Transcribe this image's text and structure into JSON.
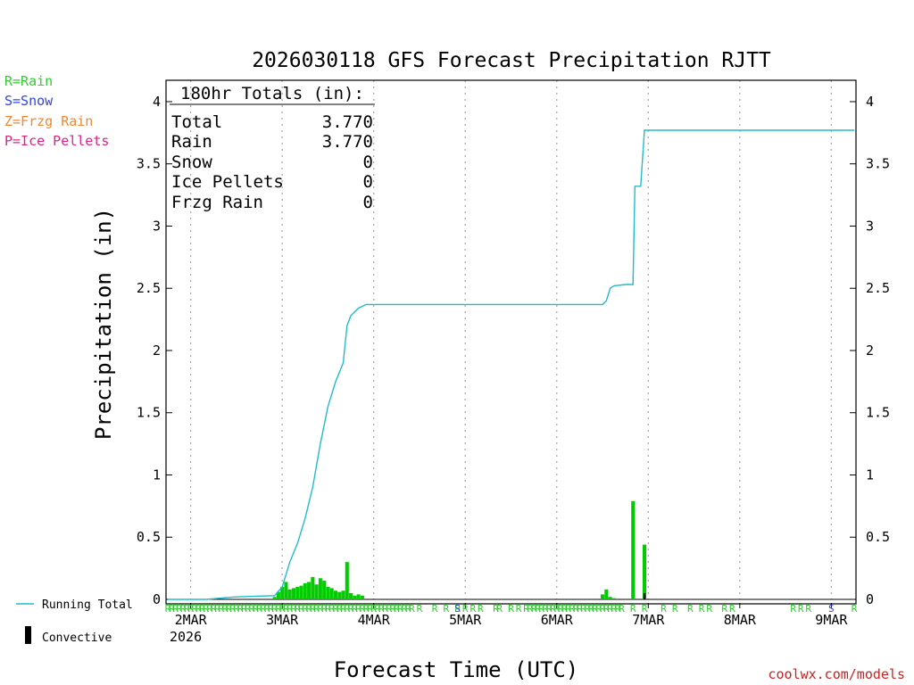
{
  "chart_data": {
    "type": "bar",
    "title": "2026030118 GFS Forecast Precipitation RJTT",
    "xlabel": "Forecast Time (UTC)",
    "ylabel": "Precipitation (in)",
    "ylim": [
      0,
      4.1
    ],
    "y_ticks": [
      0,
      0.5,
      1,
      1.5,
      2,
      2.5,
      3,
      3.5,
      4
    ],
    "y_tick_labels": [
      "0",
      "0.5",
      "1",
      "1.5",
      "2",
      "2.5",
      "3",
      "3.5",
      "4"
    ],
    "xlim_hours": [
      0,
      180
    ],
    "x_ticks": [
      {
        "hour": 6,
        "label": "2MAR",
        "sublabel": "2026"
      },
      {
        "hour": 30,
        "label": "3MAR"
      },
      {
        "hour": 54,
        "label": "4MAR"
      },
      {
        "hour": 78,
        "label": "5MAR"
      },
      {
        "hour": 102,
        "label": "6MAR"
      },
      {
        "hour": 126,
        "label": "7MAR"
      },
      {
        "hour": 150,
        "label": "8MAR"
      },
      {
        "hour": 174,
        "label": "9MAR"
      }
    ],
    "grid": "vertical dotted at day boundaries",
    "legend_left": [
      {
        "label": "R=Rain",
        "color": "#33cc33"
      },
      {
        "label": "S=Snow",
        "color": "#3344dd"
      },
      {
        "label": "Z=Frzg Rain",
        "color": "#ee8833"
      },
      {
        "label": "P=Ice Pellets",
        "color": "#dd2288"
      }
    ],
    "legend_bottom": [
      {
        "label": "Running Total",
        "kind": "line",
        "color": "#22bbcc"
      },
      {
        "label": "Convective",
        "kind": "bar",
        "color": "#000000"
      }
    ],
    "totals_box": {
      "header": "180hr Totals (in):",
      "rows": [
        {
          "label": "Total",
          "value": "3.770"
        },
        {
          "label": "Rain",
          "value": "3.770"
        },
        {
          "label": "Snow",
          "value": "0"
        },
        {
          "label": "Ice Pellets",
          "value": "0"
        },
        {
          "label": "Frzg Rain",
          "value": "0"
        }
      ]
    },
    "series": [
      {
        "kind": "line",
        "color": "#22bbcc",
        "hours": [
          0,
          10,
          18,
          28,
          30,
          32,
          34,
          36,
          38,
          40,
          42,
          44,
          46,
          47,
          48,
          49,
          50,
          52,
          54,
          60,
          90,
          114,
          115,
          116,
          117,
          120,
          122,
          122.5,
          124,
          125,
          125.5,
          180
        ],
        "values": [
          0,
          0,
          0.02,
          0.03,
          0.1,
          0.3,
          0.45,
          0.65,
          0.9,
          1.25,
          1.55,
          1.75,
          1.9,
          2.2,
          2.28,
          2.31,
          2.34,
          2.37,
          2.37,
          2.37,
          2.37,
          2.37,
          2.4,
          2.5,
          2.52,
          2.53,
          2.53,
          3.32,
          3.32,
          3.77,
          3.77,
          3.77
        ]
      },
      {
        "kind": "bar",
        "color": "#00cc00",
        "hours": [
          28,
          29,
          30,
          31,
          32,
          33,
          34,
          35,
          36,
          37,
          38,
          39,
          40,
          41,
          42,
          43,
          44,
          45,
          46,
          47,
          48,
          49,
          50,
          51,
          114,
          115,
          116,
          117,
          122,
          125
        ],
        "values": [
          0.02,
          0.06,
          0.1,
          0.14,
          0.08,
          0.09,
          0.1,
          0.11,
          0.13,
          0.14,
          0.18,
          0.12,
          0.17,
          0.15,
          0.1,
          0.09,
          0.07,
          0.06,
          0.07,
          0.3,
          0.05,
          0.03,
          0.04,
          0.03,
          0.04,
          0.08,
          0.02,
          0.01,
          0.79,
          0.44
        ]
      },
      {
        "kind": "bar",
        "color": "#000000",
        "name": "Convective",
        "hours": [
          125
        ],
        "values": [
          0.05
        ]
      }
    ],
    "ptype_markers": [
      {
        "hours": [
          0,
          1,
          2,
          3,
          4,
          5,
          6,
          7,
          8,
          9,
          10,
          11,
          12,
          13,
          14,
          15,
          16,
          17,
          18,
          19,
          20,
          21,
          22,
          23,
          24,
          25,
          26,
          27,
          28,
          29,
          30,
          31,
          32,
          33,
          34,
          35,
          36,
          37,
          38,
          39,
          40,
          41,
          42,
          43,
          44,
          45,
          46,
          47,
          48,
          49,
          50,
          51,
          52,
          53,
          54,
          55,
          56,
          57,
          58,
          59,
          60,
          61,
          62,
          63,
          64,
          66,
          70,
          73,
          76,
          78,
          80,
          82,
          86,
          87,
          90,
          92,
          94,
          95,
          96,
          97,
          98,
          99,
          100,
          101,
          102,
          103,
          104,
          105,
          106,
          107,
          108,
          109,
          110,
          111,
          112,
          113,
          114,
          115,
          116,
          117,
          118,
          119,
          122,
          125,
          130,
          133,
          137,
          140,
          142,
          146,
          148,
          164,
          166,
          168,
          180
        ],
        "symbol": "R",
        "color": "#33cc33"
      },
      {
        "hours": [
          76,
          174
        ],
        "symbol": "S",
        "color": "#3344dd"
      }
    ],
    "watermark": "coolwx.com/models"
  }
}
